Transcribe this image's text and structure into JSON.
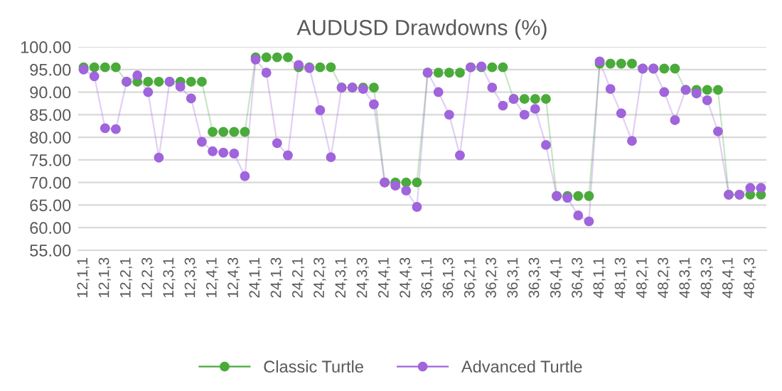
{
  "chart_data": {
    "type": "line",
    "title": "AUDUSD Drawdowns (%)",
    "categories": [
      "12,1,1",
      null,
      "12,1,3",
      null,
      "12,2,1",
      null,
      "12,2,3",
      null,
      "12,3,1",
      null,
      "12,3,3",
      null,
      "12,4,1",
      null,
      "12,4,3",
      null,
      "24,1,1",
      null,
      "24,1,3",
      null,
      "24,2,1",
      null,
      "24,2,3",
      null,
      "24,3,1",
      null,
      "24,3,3",
      null,
      "24,4,1",
      null,
      "24,4,3",
      null,
      "36,1,1",
      null,
      "36,1,3",
      null,
      "36,2,1",
      null,
      "36,2,3",
      null,
      "36,3,1",
      null,
      "36,3,3",
      null,
      "36,4,1",
      null,
      "36,4,3",
      null,
      "48,1,1",
      null,
      "48,1,3",
      null,
      "48,2,1",
      null,
      "48,2,3",
      null,
      "48,3,1",
      null,
      "48,3,3",
      null,
      "48,4,1",
      null,
      "48,4,3",
      null
    ],
    "series": [
      {
        "name": "Classic Turtle",
        "color": "#4aab3a",
        "values": [
          95.5,
          95.5,
          95.5,
          95.5,
          92.3,
          92.3,
          92.3,
          92.3,
          92.3,
          92.3,
          92.3,
          92.3,
          81.2,
          81.2,
          81.2,
          81.2,
          97.7,
          97.7,
          97.7,
          97.7,
          95.5,
          95.5,
          95.5,
          95.5,
          91,
          91,
          91,
          91,
          70,
          70,
          70,
          70,
          94.3,
          94.3,
          94.3,
          94.3,
          95.5,
          95.5,
          95.5,
          95.5,
          88.5,
          88.5,
          88.5,
          88.5,
          67,
          67,
          67,
          67,
          96.3,
          96.3,
          96.3,
          96.3,
          95.2,
          95.2,
          95.2,
          95.2,
          90.5,
          90.5,
          90.5,
          90.5,
          67.3,
          67.3,
          67.3,
          67.3
        ]
      },
      {
        "name": "Advanced Turtle",
        "color": "#a064dc",
        "values": [
          95,
          93.5,
          82,
          81.8,
          92.3,
          93.7,
          90,
          75.5,
          92.3,
          91.2,
          88.6,
          79,
          76.9,
          76.6,
          76.4,
          71.4,
          97.2,
          94.3,
          78.7,
          76,
          96,
          95.3,
          86,
          75.6,
          91,
          91,
          90.7,
          87.3,
          70,
          69.3,
          68.2,
          64.6,
          94.3,
          90,
          85,
          76,
          95.5,
          95.7,
          91,
          87,
          88.5,
          85,
          86.3,
          78.3,
          67,
          66.6,
          62.7,
          61.4,
          96.8,
          90.7,
          85.3,
          79.2,
          95.2,
          95.2,
          90,
          83.8,
          90.5,
          89.7,
          88.2,
          81.3,
          67.3,
          67.3,
          68.8,
          68.8
        ]
      }
    ],
    "ylim": [
      55,
      100
    ],
    "yticks": [
      {
        "value": 55,
        "label": "55.00"
      },
      {
        "value": 60,
        "label": "60.00"
      },
      {
        "value": 65,
        "label": "65.00"
      },
      {
        "value": 70,
        "label": "70.00"
      },
      {
        "value": 75,
        "label": "75.00"
      },
      {
        "value": 80,
        "label": "80.00"
      },
      {
        "value": 85,
        "label": "85.00"
      },
      {
        "value": 90,
        "label": "90.00"
      },
      {
        "value": 95,
        "label": "95.00"
      },
      {
        "value": 100,
        "label": "100.00"
      }
    ],
    "grid": "y",
    "legend": "bottom",
    "marker": "circle",
    "line_style": "solid"
  }
}
